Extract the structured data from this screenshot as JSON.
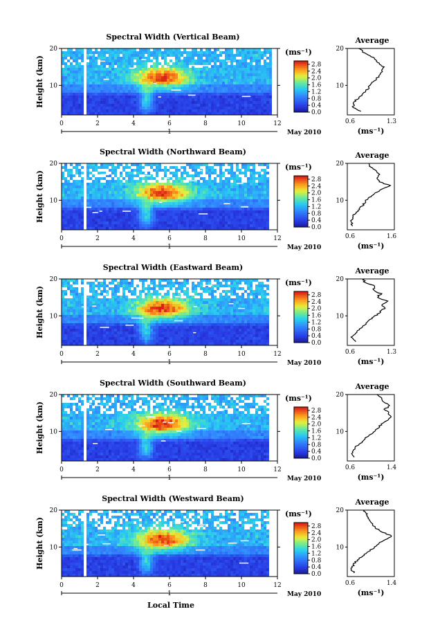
{
  "figure": {
    "xlabel": "Local Time",
    "colorbar_unit": "(ms⁻¹)",
    "colorbar_ticks": [
      "2.8",
      "2.4",
      "2.0",
      "1.6",
      "1.2",
      "0.8",
      "0.4",
      "0.0"
    ],
    "date_label": "May 2010",
    "date_tick_label": "1",
    "profile_title": "Average",
    "profile_xlabel": "(ms⁻¹)"
  },
  "chart_data": [
    {
      "type": "heatmap",
      "title": "Spectral Width (Vertical Beam)",
      "ylabel": "Height (km)",
      "xlim": [
        0,
        12
      ],
      "x_ticks": [
        0,
        2,
        4,
        6,
        8,
        10,
        12
      ],
      "ylim": [
        2,
        20
      ],
      "y_ticks": [
        10,
        20
      ],
      "colorbar": {
        "range": [
          0.0,
          3.0
        ],
        "ticks": [
          0.0,
          0.4,
          0.8,
          1.2,
          1.6,
          2.0,
          2.4,
          2.8
        ]
      },
      "data_gap_local_time": [
        1.2,
        1.4
      ],
      "profile": {
        "xlim": [
          0.6,
          1.3
        ],
        "x_tick_labels": [
          "0.6",
          "1.3"
        ],
        "ylim": [
          2,
          20
        ],
        "y_ticks": [
          10,
          20
        ],
        "heights": [
          3,
          4,
          5,
          6,
          7,
          8,
          9,
          10,
          11,
          12,
          13,
          14,
          15,
          16,
          17,
          18,
          19,
          20
        ],
        "values": [
          0.8,
          0.68,
          0.7,
          0.72,
          0.8,
          0.84,
          0.9,
          0.94,
          0.99,
          1.04,
          1.1,
          1.12,
          1.14,
          1.06,
          1.03,
          0.95,
          0.84,
          0.78
        ]
      }
    },
    {
      "type": "heatmap",
      "title": "Spectral Width (Northward Beam)",
      "ylabel": "Height (km)",
      "xlim": [
        0,
        12
      ],
      "x_ticks": [
        0,
        2,
        4,
        6,
        8,
        10,
        12
      ],
      "ylim": [
        2,
        20
      ],
      "y_ticks": [
        10,
        20
      ],
      "colorbar": {
        "range": [
          0.0,
          3.0
        ],
        "ticks": [
          0.0,
          0.4,
          0.8,
          1.2,
          1.6,
          2.0,
          2.4,
          2.8
        ]
      },
      "data_gap_local_time": [
        1.2,
        1.4
      ],
      "profile": {
        "xlim": [
          0.6,
          1.6
        ],
        "x_tick_labels": [
          "0.6",
          "1.6"
        ],
        "ylim": [
          2,
          20
        ],
        "y_ticks": [
          10,
          20
        ],
        "heights": [
          3,
          4,
          5,
          6,
          7,
          8,
          9,
          10,
          11,
          12,
          13,
          14,
          15,
          16,
          17,
          18,
          19,
          20
        ],
        "values": [
          0.72,
          0.68,
          0.7,
          0.74,
          0.82,
          0.88,
          0.95,
          1.0,
          1.1,
          1.18,
          1.35,
          1.5,
          1.28,
          1.22,
          1.3,
          1.2,
          1.1,
          1.04
        ]
      }
    },
    {
      "type": "heatmap",
      "title": "Spectral Width (Eastward Beam)",
      "ylabel": "Height (km)",
      "xlim": [
        0,
        12
      ],
      "x_ticks": [
        0,
        2,
        4,
        6,
        8,
        10,
        12
      ],
      "ylim": [
        2,
        20
      ],
      "y_ticks": [
        10,
        20
      ],
      "colorbar": {
        "range": [
          0.0,
          3.0
        ],
        "ticks": [
          0.0,
          0.4,
          0.8,
          1.2,
          1.6,
          2.0,
          2.4,
          2.8
        ]
      },
      "data_gap_local_time": [
        1.2,
        1.4
      ],
      "profile": {
        "xlim": [
          0.6,
          1.3
        ],
        "x_tick_labels": [
          "0.6",
          "1.3"
        ],
        "ylim": [
          2,
          20
        ],
        "y_ticks": [
          10,
          20
        ],
        "heights": [
          3,
          4,
          5,
          6,
          7,
          8,
          9,
          10,
          11,
          12,
          13,
          14,
          15,
          16,
          17,
          18,
          19,
          20
        ],
        "values": [
          0.72,
          0.66,
          0.7,
          0.76,
          0.82,
          0.88,
          0.94,
          1.02,
          1.08,
          1.15,
          1.12,
          1.2,
          1.04,
          1.1,
          0.98,
          1.02,
          0.86,
          0.84
        ]
      }
    },
    {
      "type": "heatmap",
      "title": "Spectral Width (Southward Beam)",
      "ylabel": "Height (km)",
      "xlim": [
        0,
        12
      ],
      "x_ticks": [
        0,
        2,
        4,
        6,
        8,
        10,
        12
      ],
      "ylim": [
        2,
        20
      ],
      "y_ticks": [
        10,
        20
      ],
      "colorbar": {
        "range": [
          0.0,
          3.0
        ],
        "ticks": [
          0.0,
          0.4,
          0.8,
          1.2,
          1.6,
          2.0,
          2.4,
          2.8
        ]
      },
      "data_gap_local_time": [
        1.2,
        1.4
      ],
      "profile": {
        "xlim": [
          0.6,
          1.4
        ],
        "x_tick_labels": [
          "0.6",
          "1.4"
        ],
        "ylim": [
          2,
          20
        ],
        "y_ticks": [
          10,
          20
        ],
        "heights": [
          3,
          4,
          5,
          6,
          7,
          8,
          9,
          10,
          11,
          12,
          13,
          14,
          15,
          16,
          17,
          18,
          19,
          20
        ],
        "values": [
          0.72,
          0.68,
          0.72,
          0.76,
          0.84,
          0.9,
          0.98,
          1.05,
          1.12,
          1.18,
          1.28,
          1.34,
          1.3,
          1.24,
          1.32,
          1.22,
          1.18,
          1.1
        ]
      }
    },
    {
      "type": "heatmap",
      "title": "Spectral Width (Westward Beam)",
      "ylabel": "Height (km)",
      "xlim": [
        0,
        12
      ],
      "x_ticks": [
        0,
        2,
        4,
        6,
        8,
        10,
        12
      ],
      "ylim": [
        2,
        20
      ],
      "y_ticks": [
        10,
        20
      ],
      "colorbar": {
        "range": [
          0.0,
          3.0
        ],
        "ticks": [
          0.0,
          0.4,
          0.8,
          1.2,
          1.6,
          2.0,
          2.4,
          2.8
        ]
      },
      "data_gap_local_time": [
        1.2,
        1.4
      ],
      "profile": {
        "xlim": [
          0.6,
          1.4
        ],
        "x_tick_labels": [
          "0.6",
          "1.4"
        ],
        "ylim": [
          2,
          20
        ],
        "y_ticks": [
          10,
          20
        ],
        "heights": [
          3,
          4,
          5,
          6,
          7,
          8,
          9,
          10,
          11,
          12,
          13,
          14,
          15,
          16,
          17,
          18,
          19,
          20
        ],
        "values": [
          0.72,
          0.66,
          0.7,
          0.74,
          0.82,
          0.9,
          0.98,
          1.06,
          1.14,
          1.24,
          1.36,
          1.2,
          1.1,
          1.02,
          1.0,
          0.95,
          0.92,
          0.88
        ]
      }
    }
  ]
}
